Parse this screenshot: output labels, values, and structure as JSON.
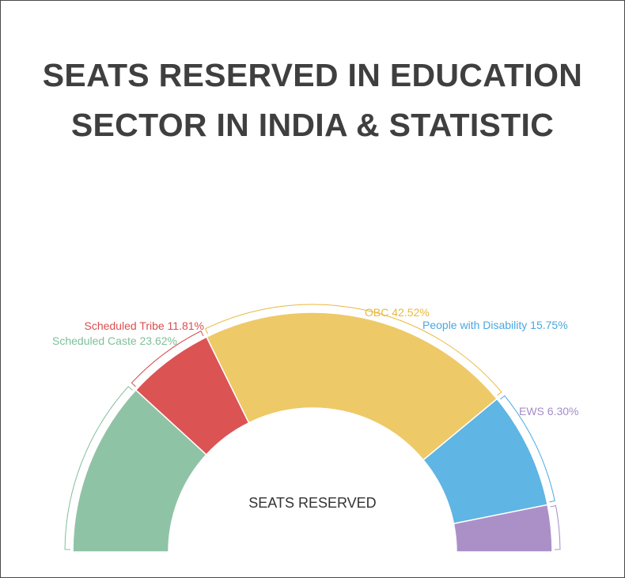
{
  "title_lines": [
    "SEATS RESERVED IN EDUCATION",
    "SECTOR IN INDIA & STATISTIC"
  ],
  "colors": {
    "background": "#ffffff",
    "title": "#3f3f3f",
    "center_label": "#333333"
  },
  "chart_data": {
    "type": "pie",
    "subtype": "semicircle-donut",
    "center_label": "SEATS RESERVED",
    "slices": [
      {
        "name": "Scheduled Caste",
        "value": 23.62,
        "label": "Scheduled Caste 23.62%",
        "color": "#8fc3a6",
        "label_color": "#7fbf9a"
      },
      {
        "name": "Scheduled Tribe",
        "value": 11.81,
        "label": "Scheduled Tribe 11.81%",
        "color": "#dc5354",
        "label_color": "#d94f4f"
      },
      {
        "name": "OBC",
        "value": 42.52,
        "label": "OBC 42.52%",
        "color": "#eec967",
        "label_color": "#e8b93f"
      },
      {
        "name": "People with Disability",
        "value": 15.75,
        "label": "People with Disability 15.75%",
        "color": "#5fb5e3",
        "label_color": "#4aa8e0"
      },
      {
        "name": "EWS",
        "value": 6.3,
        "label": "EWS 6.30%",
        "color": "#ab90c8",
        "label_color": "#a48cc6"
      }
    ],
    "legend": "none"
  }
}
